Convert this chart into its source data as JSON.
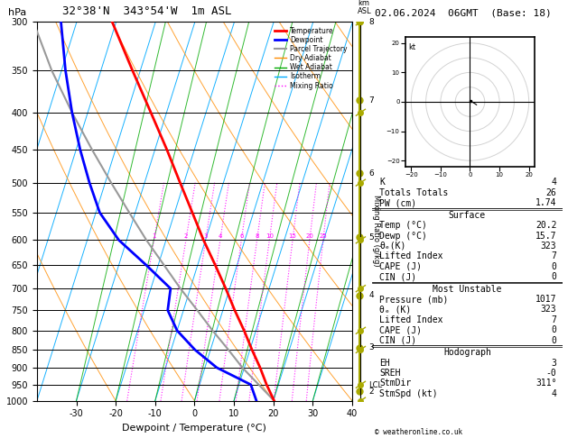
{
  "title_left": "32°38'N  343°54'W  1m ASL",
  "title_right": "02.06.2024  06GMT  (Base: 18)",
  "xlabel": "Dewpoint / Temperature (°C)",
  "ylabel_left": "hPa",
  "pmin": 300,
  "pmax": 1000,
  "temp_min": -40,
  "temp_max": 40,
  "skew_factor": 1.0,
  "temp_color": "#ff0000",
  "dewp_color": "#0000ff",
  "parcel_color": "#999999",
  "dry_adiabat_color": "#ff8c00",
  "wet_adiabat_color": "#00aa00",
  "isotherm_color": "#00aaff",
  "mixing_ratio_color": "#ff00ff",
  "legend_items": [
    {
      "label": "Temperature",
      "color": "#ff0000",
      "lw": 2.0,
      "ls": "-"
    },
    {
      "label": "Dewpoint",
      "color": "#0000ff",
      "lw": 2.0,
      "ls": "-"
    },
    {
      "label": "Parcel Trajectory",
      "color": "#999999",
      "lw": 1.5,
      "ls": "-"
    },
    {
      "label": "Dry Adiabat",
      "color": "#ff8c00",
      "lw": 1.0,
      "ls": "-"
    },
    {
      "label": "Wet Adiabat",
      "color": "#00aa00",
      "lw": 1.0,
      "ls": "-"
    },
    {
      "label": "Isotherm",
      "color": "#00aaff",
      "lw": 1.0,
      "ls": "-"
    },
    {
      "label": "Mixing Ratio",
      "color": "#ff00ff",
      "lw": 1.0,
      "ls": ":"
    }
  ],
  "temp_profile": {
    "pressure": [
      1000,
      950,
      900,
      850,
      800,
      750,
      700,
      650,
      600,
      550,
      500,
      450,
      400,
      350,
      300
    ],
    "temp": [
      20.2,
      17.0,
      14.0,
      10.5,
      7.0,
      3.0,
      -1.0,
      -5.5,
      -10.5,
      -15.5,
      -21.0,
      -27.0,
      -34.0,
      -42.0,
      -51.0
    ]
  },
  "dewp_profile": {
    "pressure": [
      1000,
      950,
      900,
      850,
      800,
      750,
      700,
      650,
      600,
      550,
      500,
      450,
      400,
      350,
      300
    ],
    "temp": [
      15.7,
      13.0,
      3.0,
      -4.0,
      -10.0,
      -14.0,
      -15.0,
      -23.0,
      -32.0,
      -39.0,
      -44.0,
      -49.0,
      -54.0,
      -59.0,
      -64.0
    ]
  },
  "parcel_profile": {
    "pressure": [
      1000,
      950,
      900,
      850,
      800,
      750,
      700,
      650,
      600,
      550,
      500,
      450,
      400,
      350,
      300
    ],
    "temp": [
      20.2,
      15.0,
      9.5,
      4.5,
      -1.0,
      -6.5,
      -12.5,
      -18.5,
      -25.0,
      -31.5,
      -38.5,
      -46.0,
      -54.0,
      -62.5,
      -71.0
    ]
  },
  "mixing_ratio_values": [
    1,
    2,
    3,
    4,
    6,
    8,
    10,
    15,
    20,
    25
  ],
  "km_pressures": [
    300,
    385,
    485,
    595,
    715,
    845,
    970
  ],
  "km_labels": [
    "8",
    "7",
    "6",
    "5",
    "4",
    "3",
    "2"
  ],
  "lcl_pressure": 953,
  "ytick_pressures": [
    300,
    350,
    400,
    450,
    500,
    550,
    600,
    650,
    700,
    750,
    800,
    850,
    900,
    950,
    1000
  ],
  "xtick_vals": [
    -30,
    -20,
    -10,
    0,
    10,
    20,
    30,
    40
  ],
  "stats": {
    "K": 4,
    "Totals_Totals": 26,
    "PW_cm": 1.74,
    "Surface_Temp": 20.2,
    "Surface_Dewp": 15.7,
    "Surface_theta_e": 323,
    "Surface_Lifted_Index": 7,
    "Surface_CAPE": 0,
    "Surface_CIN": 0,
    "MU_Pressure": 1017,
    "MU_theta_e": 323,
    "MU_Lifted_Index": 7,
    "MU_CAPE": 0,
    "MU_CIN": 0,
    "EH": 3,
    "SREH": "-0",
    "StmDir": "311°",
    "StmSpd": 4
  },
  "hodo_winds_u": [
    0.3,
    0.5,
    0.7,
    1.0,
    1.3,
    1.8,
    2.2
  ],
  "hodo_winds_v": [
    0.3,
    0.2,
    0.0,
    -0.2,
    -0.4,
    -0.7,
    -1.0
  ]
}
